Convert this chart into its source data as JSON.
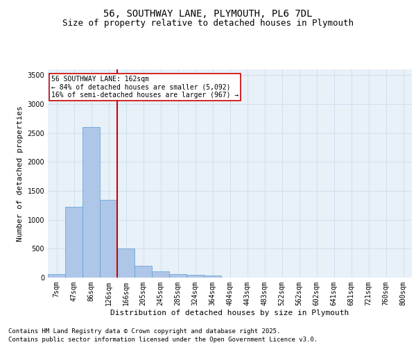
{
  "title_line1": "56, SOUTHWAY LANE, PLYMOUTH, PL6 7DL",
  "title_line2": "Size of property relative to detached houses in Plymouth",
  "xlabel": "Distribution of detached houses by size in Plymouth",
  "ylabel": "Number of detached properties",
  "categories": [
    "7sqm",
    "47sqm",
    "86sqm",
    "126sqm",
    "166sqm",
    "205sqm",
    "245sqm",
    "285sqm",
    "324sqm",
    "364sqm",
    "404sqm",
    "443sqm",
    "483sqm",
    "522sqm",
    "562sqm",
    "602sqm",
    "641sqm",
    "681sqm",
    "721sqm",
    "760sqm",
    "800sqm"
  ],
  "values": [
    60,
    1230,
    2600,
    1350,
    500,
    200,
    105,
    60,
    50,
    35,
    5,
    0,
    0,
    0,
    0,
    0,
    0,
    0,
    0,
    0,
    0
  ],
  "bar_color": "#aec6e8",
  "bar_edge_color": "#5a9fd4",
  "vline_color": "#cc0000",
  "annotation_title": "56 SOUTHWAY LANE: 162sqm",
  "annotation_line1": "← 84% of detached houses are smaller (5,092)",
  "annotation_line2": "16% of semi-detached houses are larger (967) →",
  "annotation_box_color": "#cc0000",
  "annotation_bg": "#ffffff",
  "ylim": [
    0,
    3600
  ],
  "yticks": [
    0,
    500,
    1000,
    1500,
    2000,
    2500,
    3000,
    3500
  ],
  "grid_color": "#ccddee",
  "bg_color": "#e8f0f8",
  "footer_line1": "Contains HM Land Registry data © Crown copyright and database right 2025.",
  "footer_line2": "Contains public sector information licensed under the Open Government Licence v3.0.",
  "title_fontsize": 10,
  "subtitle_fontsize": 9,
  "axis_label_fontsize": 8,
  "tick_fontsize": 7,
  "annotation_fontsize": 7,
  "footer_fontsize": 6.5
}
